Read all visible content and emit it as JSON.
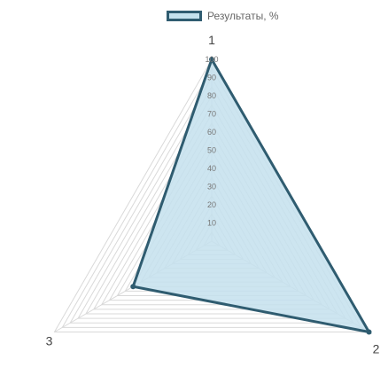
{
  "chart_data": {
    "type": "radar",
    "categories": [
      "1",
      "2",
      "3"
    ],
    "series": [
      {
        "name": "Результаты, %",
        "values": [
          100,
          100,
          50
        ]
      }
    ],
    "scale": {
      "min": 0,
      "max": 100,
      "ticks": [
        10,
        20,
        30,
        40,
        50,
        60,
        70,
        80,
        90,
        100
      ],
      "grid_step": 5
    },
    "legend_position": "top",
    "colors": {
      "line": "#2f5c70",
      "fill": "#c4e1ed",
      "grid": "#d9d9d9",
      "tick_text": "#777777",
      "category_text": "#444444"
    }
  }
}
